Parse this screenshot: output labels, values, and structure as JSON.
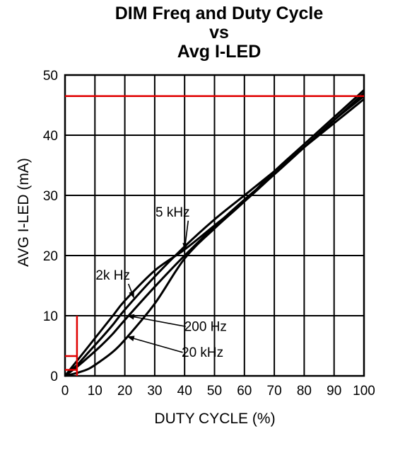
{
  "chart_data": {
    "type": "line",
    "title_lines": [
      "DIM Freq and Duty Cycle",
      "vs",
      "Avg I-LED"
    ],
    "xlabel": "DUTY CYCLE (%)",
    "ylabel": "AVG I-LED (mA)",
    "xlim": [
      0,
      100
    ],
    "ylim": [
      0,
      50
    ],
    "x_ticks": [
      0,
      10,
      20,
      30,
      40,
      50,
      60,
      70,
      80,
      90,
      100
    ],
    "y_ticks": [
      0,
      10,
      20,
      30,
      40,
      50
    ],
    "grid": true,
    "series": [
      {
        "name": "5 kHz",
        "x": [
          0,
          4,
          8,
          12,
          16,
          20,
          30,
          40,
          50,
          60,
          70,
          80,
          90,
          100
        ],
        "y": [
          0,
          1.8,
          4,
          6.2,
          8.5,
          11,
          16.5,
          21.5,
          26,
          30,
          34,
          38,
          42,
          46
        ]
      },
      {
        "name": "2k Hz",
        "x": [
          0,
          4,
          8,
          12,
          16,
          20,
          30,
          40,
          50,
          60,
          70,
          80,
          90,
          100
        ],
        "y": [
          0,
          2.5,
          5,
          7.5,
          10,
          12.5,
          17.5,
          21,
          25,
          29,
          33.5,
          38,
          42.5,
          46.5
        ]
      },
      {
        "name": "200 Hz",
        "x": [
          0,
          4,
          8,
          12,
          16,
          20,
          30,
          40,
          50,
          60,
          70,
          80,
          90,
          100
        ],
        "y": [
          0,
          1.5,
          3.2,
          5,
          7,
          9.3,
          14.8,
          20,
          24.8,
          29.3,
          33.5,
          38,
          42.5,
          47
        ]
      },
      {
        "name": "20 kHz",
        "x": [
          0,
          4,
          8,
          12,
          16,
          20,
          30,
          40,
          50,
          60,
          70,
          80,
          90,
          100
        ],
        "y": [
          0,
          0.5,
          1.2,
          2.5,
          4,
          6,
          12,
          19.5,
          24.5,
          29,
          34,
          38.5,
          43,
          47.5
        ]
      }
    ],
    "reference_lines": {
      "horizontal_y": 46.5,
      "vertical_x": 4,
      "vertical_y_top": 10,
      "short_horizontal_y": [
        3.3,
        1
      ]
    },
    "annotations": [
      {
        "text": "5 kHz",
        "x": 36,
        "y": 26.5,
        "target_x": 40,
        "target_y": 21
      },
      {
        "text": "2k Hz",
        "x": 16,
        "y": 16,
        "target_x": 23,
        "target_y": 13
      },
      {
        "text": "200 Hz",
        "x": 47,
        "y": 7.5,
        "target_x": 21,
        "target_y": 10
      },
      {
        "text": "20 kHz",
        "x": 46,
        "y": 3.2,
        "target_x": 21,
        "target_y": 6.5
      }
    ],
    "colors": {
      "curve": "#000000",
      "grid": "#000000",
      "reference": "#e00000"
    }
  }
}
